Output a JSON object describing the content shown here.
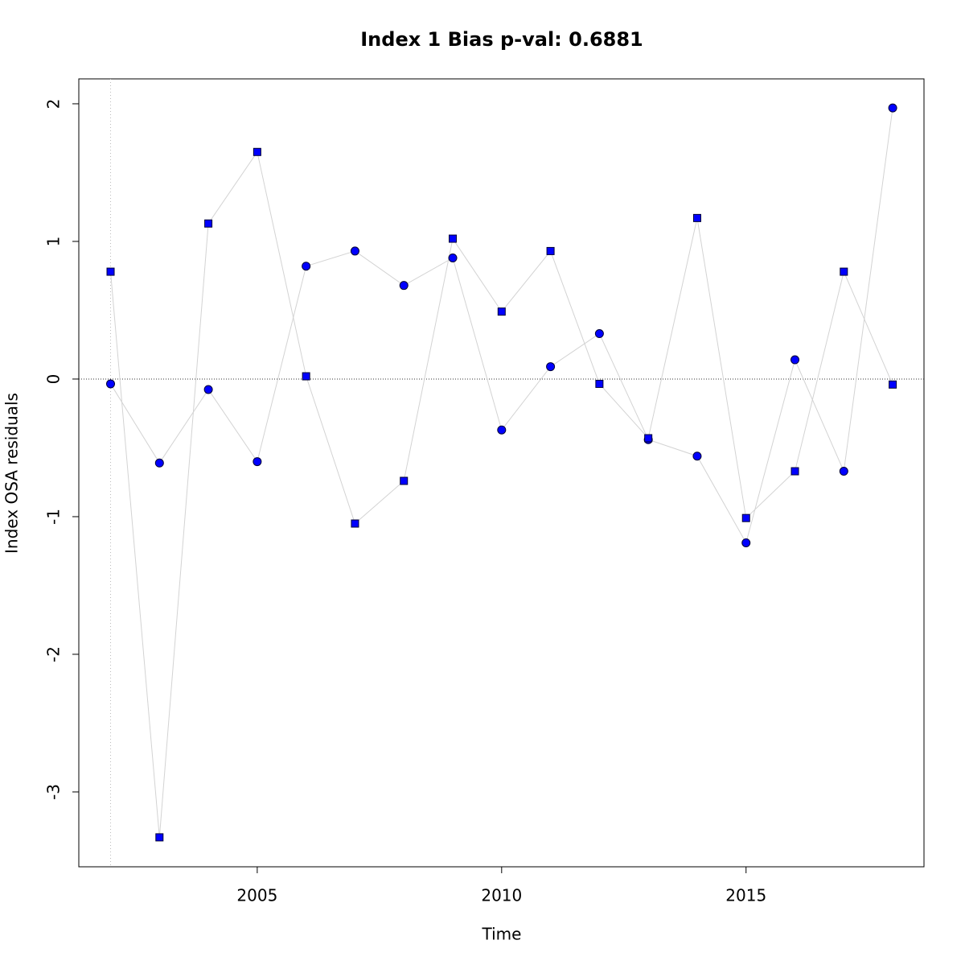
{
  "chart_data": {
    "type": "line",
    "title": "Index 1 Bias p-val: 0.6881",
    "title_color": "#228b22",
    "x_label": "Time",
    "y_label": "Index OSA residuals",
    "x": [
      2002,
      2003,
      2004,
      2005,
      2006,
      2007,
      2008,
      2009,
      2010,
      2011,
      2012,
      2013,
      2014,
      2015,
      2016,
      2017,
      2018
    ],
    "series": [
      {
        "marker": "circle",
        "color": "#0000ff",
        "line_color": "#d3d3d3",
        "values": [
          -0.035,
          -0.61,
          -0.076,
          -0.6,
          0.82,
          0.93,
          0.68,
          0.88,
          -0.37,
          0.09,
          0.33,
          -0.44,
          -0.56,
          -1.19,
          0.14,
          -0.67,
          1.97
        ]
      },
      {
        "marker": "square",
        "color": "#0000ff",
        "line_color": "#d3d3d3",
        "values": [
          0.78,
          -3.33,
          1.13,
          1.65,
          0.02,
          -1.05,
          -0.74,
          1.02,
          0.49,
          0.93,
          -0.035,
          -0.43,
          1.17,
          -1.01,
          -0.67,
          0.78,
          -0.04
        ]
      }
    ],
    "xlim": [
      2001.35,
      2018.64
    ],
    "xticks": [
      2005,
      2010,
      2015
    ],
    "ylim": [
      -3.544,
      2.181
    ],
    "yticks": [
      -3,
      -2,
      -1,
      0,
      1,
      2
    ],
    "hline": 0,
    "vline": 2002
  }
}
